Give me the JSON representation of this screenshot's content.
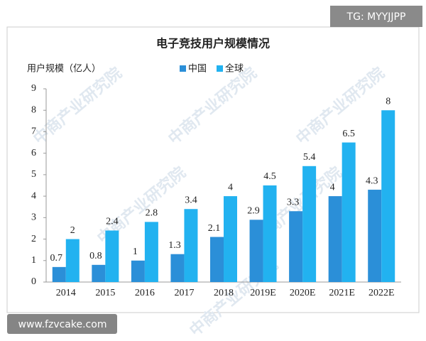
{
  "chart_data": {
    "type": "bar",
    "title": "电子竞技用户规模情况",
    "y_label": "用户规模（亿人）",
    "categories": [
      "2014",
      "2015",
      "2016",
      "2017",
      "2018",
      "2019E",
      "2020E",
      "2021E",
      "2022E"
    ],
    "series": [
      {
        "name": "中国",
        "color": "#2b8fd8",
        "values": [
          0.7,
          0.8,
          1,
          1.3,
          2.1,
          2.9,
          3.3,
          4,
          4.3
        ]
      },
      {
        "name": "全球",
        "color": "#22b2f0",
        "values": [
          2,
          2.4,
          2.8,
          3.4,
          4,
          4.5,
          5.4,
          6.5,
          8
        ]
      }
    ],
    "ylim": [
      0,
      9
    ],
    "yticks": [
      0,
      1,
      2,
      3,
      4,
      5,
      6,
      7,
      8,
      9
    ],
    "grid": false
  },
  "watermarks": {
    "top_right": "TG: MYYJJPP",
    "bottom_left": "www.fzvcake.com",
    "background": "中商产业研究院"
  }
}
